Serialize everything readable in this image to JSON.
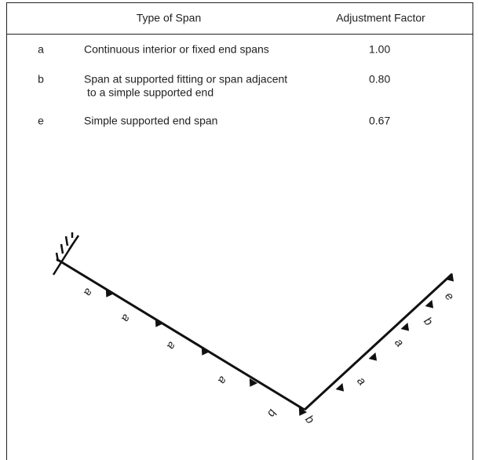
{
  "table": {
    "header": [
      "Type of Span",
      "Adjustment Factor"
    ],
    "rows": [
      {
        "label": "a",
        "description": [
          "Continuous interior or fixed end spans"
        ],
        "factor": "1.00"
      },
      {
        "label": "b",
        "description": [
          "Span at supported fitting or span adjacent",
          "to a simple supported end"
        ],
        "factor": "0.80"
      },
      {
        "label": "e",
        "description": [
          "Simple supported end  span"
        ],
        "factor": "0.67"
      }
    ]
  },
  "diagram": {
    "labels": [
      "a",
      "a",
      "a",
      "a",
      "b",
      "b",
      "a",
      "a",
      "b",
      "e"
    ]
  }
}
